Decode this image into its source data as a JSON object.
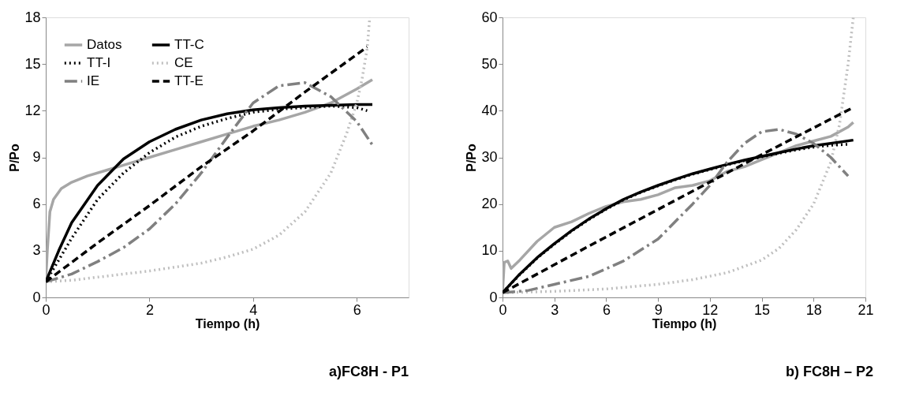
{
  "chart_data": [
    {
      "type": "line",
      "title": "a)FC8H - P1",
      "xlabel": "Tiempo (h)",
      "ylabel": "P/Po",
      "xlim": [
        0,
        7
      ],
      "xticks": [
        0,
        2,
        4,
        6
      ],
      "ylim": [
        0,
        18
      ],
      "yticks": [
        0,
        3,
        6,
        9,
        12,
        15,
        18
      ],
      "grid": false,
      "legend": "top left",
      "series": [
        {
          "name": "Datos",
          "color": "#a6a6a6",
          "line_style": "solid",
          "x": [
            0,
            0.03,
            0.08,
            0.15,
            0.3,
            0.5,
            0.8,
            1.2,
            1.6,
            2,
            2.5,
            3,
            3.5,
            4,
            4.5,
            5,
            5.5,
            6,
            6.3
          ],
          "values": [
            1,
            3,
            5.5,
            6.3,
            7,
            7.4,
            7.8,
            8.2,
            8.6,
            9,
            9.5,
            10,
            10.5,
            11,
            11.4,
            11.9,
            12.5,
            13.4,
            14
          ]
        },
        {
          "name": "TT-C",
          "color": "#000000",
          "line_style": "solid",
          "x": [
            0,
            0.25,
            0.5,
            1,
            1.5,
            2,
            2.5,
            3,
            3.5,
            4,
            4.5,
            5,
            5.5,
            6,
            6.3
          ],
          "values": [
            1,
            3,
            4.8,
            7.2,
            8.9,
            10,
            10.8,
            11.4,
            11.8,
            12.05,
            12.2,
            12.3,
            12.35,
            12.4,
            12.4
          ]
        },
        {
          "name": "TT-I",
          "color": "#000000",
          "line_style": "dotted",
          "x": [
            0,
            0.5,
            1,
            1.5,
            2,
            2.5,
            3,
            3.5,
            4,
            4.5,
            5,
            5.5,
            6,
            6.2
          ],
          "values": [
            1,
            3.8,
            6.3,
            8,
            9.3,
            10.3,
            11,
            11.5,
            11.9,
            12.1,
            12.2,
            12.3,
            12.2,
            12
          ]
        },
        {
          "name": "CE",
          "color": "#bfbfbf",
          "line_style": "dotted",
          "x": [
            0,
            0.5,
            1,
            2,
            3,
            3.5,
            4,
            4.5,
            5,
            5.5,
            5.8,
            6,
            6.1,
            6.2,
            6.25
          ],
          "values": [
            1,
            1.1,
            1.3,
            1.7,
            2.2,
            2.6,
            3.1,
            4,
            5.5,
            8,
            10.5,
            12.5,
            14,
            16,
            18
          ]
        },
        {
          "name": "IE",
          "color": "#808080",
          "line_style": "dashdot",
          "x": [
            0,
            0.5,
            1,
            1.5,
            2,
            2.5,
            3,
            3.5,
            4,
            4.5,
            5,
            5.5,
            6,
            6.3
          ],
          "values": [
            1,
            1.5,
            2.3,
            3.2,
            4.4,
            6,
            8,
            10.3,
            12.5,
            13.6,
            13.8,
            12.9,
            11.3,
            9.8
          ]
        },
        {
          "name": "TT-E",
          "color": "#000000",
          "line_style": "dashed",
          "x": [
            0,
            1,
            2,
            3,
            4,
            5,
            6.2
          ],
          "values": [
            1,
            3.5,
            5.9,
            8.4,
            10.7,
            13.2,
            16.1
          ]
        }
      ]
    },
    {
      "type": "line",
      "title": "b) FC8H – P2",
      "xlabel": "Tiempo (h)",
      "ylabel": "P/Po",
      "xlim": [
        0,
        21
      ],
      "xticks": [
        0,
        3,
        6,
        9,
        12,
        15,
        18,
        21
      ],
      "ylim": [
        0,
        60
      ],
      "yticks": [
        0,
        10,
        20,
        30,
        40,
        50,
        60
      ],
      "grid": false,
      "legend": "top left",
      "series": [
        {
          "name": "Datos",
          "color": "#a6a6a6",
          "line_style": "solid",
          "x": [
            0,
            0.1,
            0.3,
            0.5,
            1,
            2,
            3,
            4,
            5,
            6,
            7,
            8,
            9,
            10,
            11,
            12,
            13,
            14,
            15,
            16,
            17,
            18,
            19,
            20,
            20.3
          ],
          "values": [
            1,
            7.5,
            7.8,
            6.2,
            8,
            12,
            15,
            16.2,
            18,
            19.5,
            20.5,
            21,
            22,
            23.5,
            24,
            25,
            27,
            28,
            29.5,
            31,
            32.5,
            33.5,
            34.5,
            36.5,
            37.5
          ]
        },
        {
          "name": "TT-C",
          "color": "#000000",
          "line_style": "solid",
          "x": [
            0,
            1,
            2,
            3,
            4,
            5,
            6,
            7,
            8,
            9,
            10,
            11,
            12,
            13,
            14,
            15,
            16,
            17,
            18,
            19,
            20.3
          ],
          "values": [
            1,
            5,
            8.5,
            11.5,
            14.3,
            16.8,
            19,
            21,
            22.6,
            24,
            25.3,
            26.5,
            27.5,
            28.5,
            29.4,
            30.2,
            31,
            31.8,
            32.5,
            33,
            33.7
          ]
        },
        {
          "name": "TT-I",
          "color": "#000000",
          "line_style": "dotted",
          "x": [
            0,
            1,
            2,
            3,
            4,
            5,
            6,
            7,
            8,
            9,
            10,
            11,
            12,
            13,
            14,
            15,
            16,
            17,
            18,
            19,
            20
          ],
          "values": [
            1,
            4.9,
            8.4,
            11.4,
            14.2,
            16.7,
            18.9,
            20.9,
            22.5,
            23.9,
            25.2,
            26.4,
            27.4,
            28.4,
            29.3,
            30.1,
            30.9,
            31.6,
            32.2,
            32.6,
            32.8
          ]
        },
        {
          "name": "CE",
          "color": "#bfbfbf",
          "line_style": "dotted",
          "x": [
            0,
            3,
            6,
            9,
            11,
            13,
            15,
            16,
            17,
            18,
            19,
            19.5,
            20,
            20.3
          ],
          "values": [
            1,
            1.3,
            1.8,
            2.8,
            3.8,
            5.3,
            8,
            10.5,
            14.5,
            20,
            29,
            37,
            50,
            60
          ]
        },
        {
          "name": "IE",
          "color": "#808080",
          "line_style": "dashdot",
          "x": [
            0,
            1.5,
            3,
            5,
            7,
            9,
            11,
            12,
            13,
            14,
            15,
            16,
            17,
            18,
            19,
            20
          ],
          "values": [
            1,
            1.5,
            2.8,
            4.5,
            7.8,
            12.5,
            20,
            24,
            29,
            33,
            35.5,
            36,
            35,
            33,
            30,
            26
          ]
        },
        {
          "name": "TT-E",
          "color": "#000000",
          "line_style": "dashed",
          "x": [
            0,
            5,
            10,
            15,
            20.3
          ],
          "values": [
            1,
            11,
            20.8,
            30.6,
            40.7
          ]
        }
      ]
    }
  ]
}
